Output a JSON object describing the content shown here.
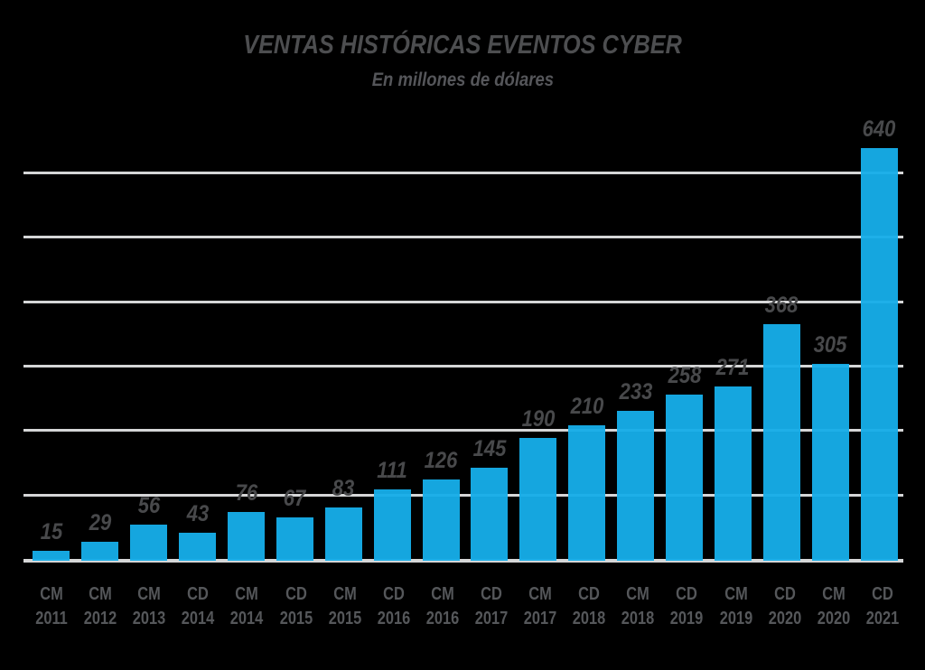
{
  "header": {
    "title": "VENTAS HISTÓRICAS EVENTOS CYBER",
    "subtitle": "En millones de dólares"
  },
  "chart_data": {
    "type": "bar",
    "title": "VENTAS HISTÓRICAS EVENTOS CYBER",
    "subtitle": "En millones de dólares",
    "categories": [
      {
        "period": "CM",
        "year": "2011"
      },
      {
        "period": "CM",
        "year": "2012"
      },
      {
        "period": "CM",
        "year": "2013"
      },
      {
        "period": "CD",
        "year": "2014"
      },
      {
        "period": "CM",
        "year": "2014"
      },
      {
        "period": "CD",
        "year": "2015"
      },
      {
        "period": "CM",
        "year": "2015"
      },
      {
        "period": "CD",
        "year": "2016"
      },
      {
        "period": "CM",
        "year": "2016"
      },
      {
        "period": "CD",
        "year": "2017"
      },
      {
        "period": "CM",
        "year": "2017"
      },
      {
        "period": "CD",
        "year": "2018"
      },
      {
        "period": "CM",
        "year": "2018"
      },
      {
        "period": "CD",
        "year": "2019"
      },
      {
        "period": "CM",
        "year": "2019"
      },
      {
        "period": "CD",
        "year": "2020"
      },
      {
        "period": "CM",
        "year": "2020"
      },
      {
        "period": "CD",
        "year": "2021"
      }
    ],
    "values": [
      15,
      29,
      56,
      43,
      76,
      67,
      83,
      111,
      126,
      145,
      190,
      210,
      233,
      258,
      271,
      368,
      305,
      640
    ],
    "xlabel": "",
    "ylabel": "",
    "ylim": [
      0,
      675
    ],
    "gridlines": [
      100,
      200,
      300,
      400,
      500,
      600
    ],
    "grid": "horizontal-only, unlabeled ticks every 100",
    "legend": "none",
    "value_labels": "above each bar",
    "colors": {
      "bar": "#16ade8",
      "background": "#000000",
      "gridline": "#d5d6d7",
      "title_text": "#4d4e50",
      "value_text": "#48494b",
      "axis_text": "#55575a"
    }
  }
}
